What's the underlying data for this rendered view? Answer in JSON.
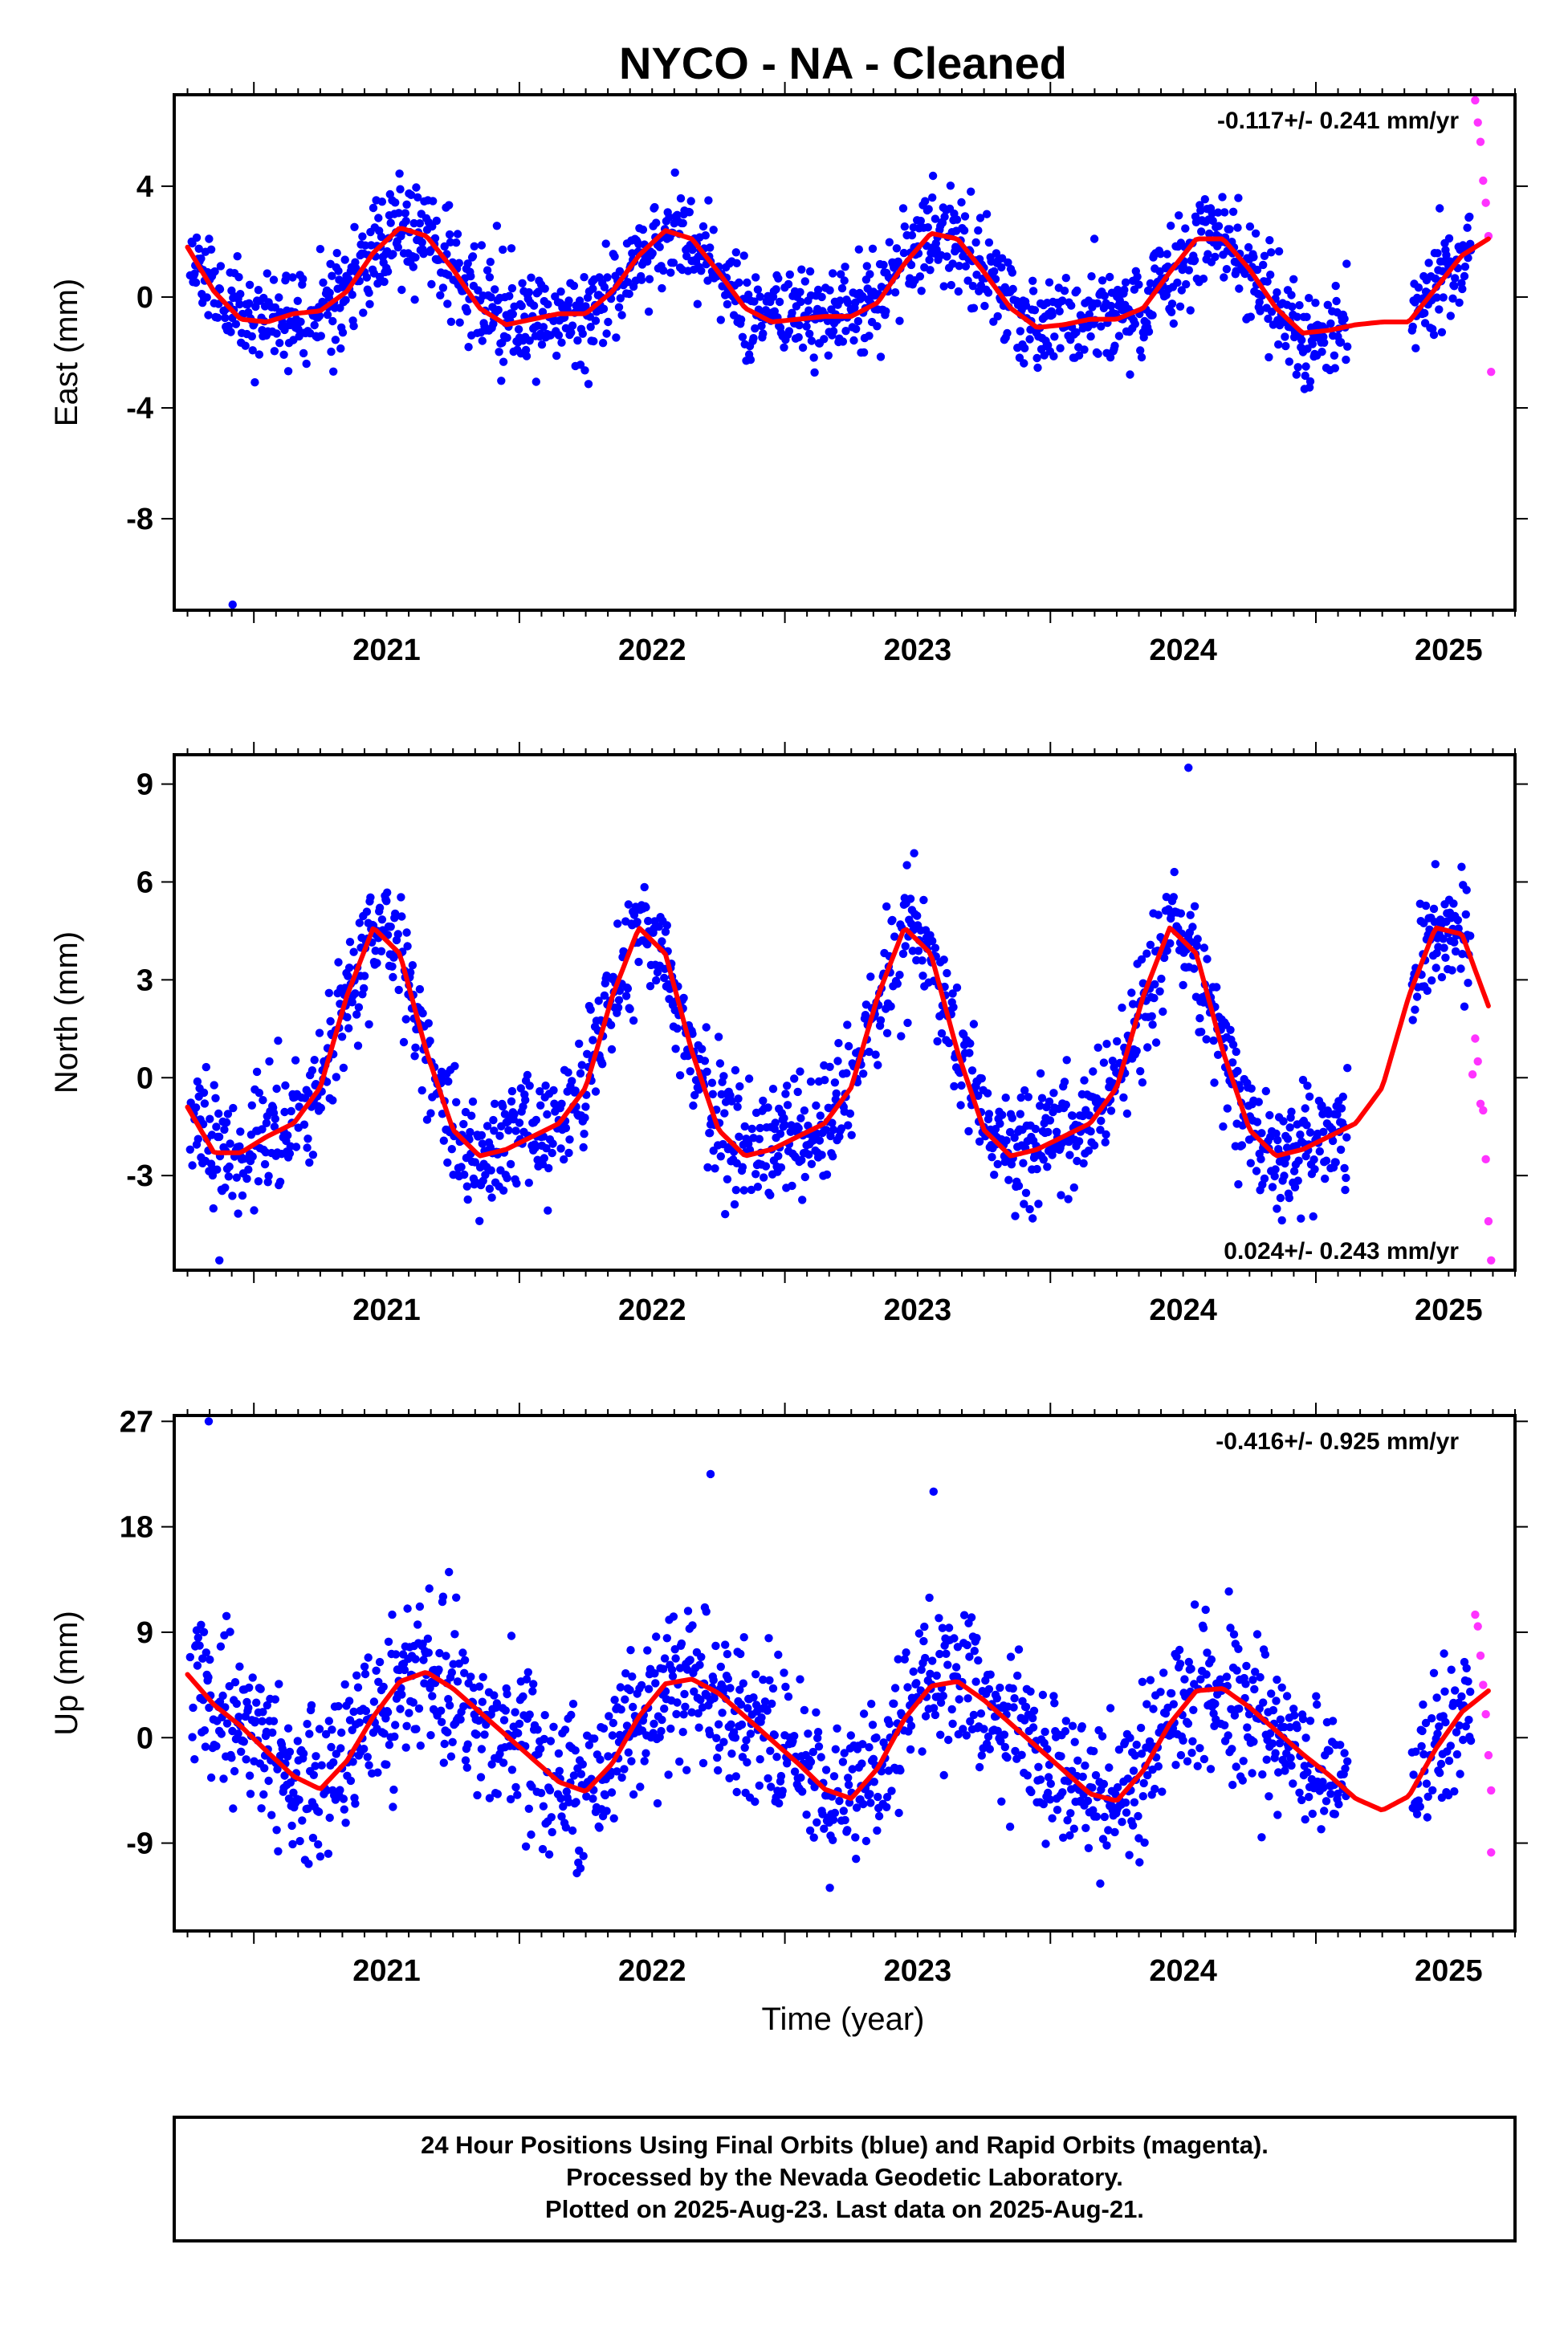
{
  "title": "NYCO  - NA - Cleaned",
  "xlabel": "Time (year)",
  "colors": {
    "final": "#0000ff",
    "rapid": "#ff33ff",
    "model": "#ff0000",
    "frame": "#000000"
  },
  "footer": [
    "24 Hour Positions Using Final Orbits (blue) and Rapid Orbits (magenta).",
    "Processed by the Nevada Geodetic Laboratory.",
    "Plotted on 2025-Aug-23. Last data on 2025-Aug-21."
  ],
  "chart_data": [
    {
      "type": "scatter",
      "ylabel": "East (mm)",
      "rate_text": "-0.117+/- 0.241 mm/yr",
      "rate_position": "top-right",
      "xlim": [
        2020.7,
        2025.75
      ],
      "ylim": [
        -11.3,
        7.3
      ],
      "x_ticks": [
        2021,
        2022,
        2023,
        2024,
        2025
      ],
      "y_ticks": [
        4,
        0,
        -4,
        -8
      ],
      "model": {
        "x": [
          2020.75,
          2020.85,
          2020.95,
          2021.05,
          2021.15,
          2021.25,
          2021.35,
          2021.45,
          2021.55,
          2021.65,
          2021.75,
          2021.85,
          2021.95,
          2022.05,
          2022.15,
          2022.25,
          2022.35,
          2022.45,
          2022.55,
          2022.65,
          2022.75,
          2022.85,
          2022.95,
          2023.05,
          2023.15,
          2023.25,
          2023.35,
          2023.45,
          2023.55,
          2023.65,
          2023.75,
          2023.85,
          2023.95,
          2024.05,
          2024.15,
          2024.25,
          2024.35,
          2024.45,
          2024.55,
          2024.65,
          2024.75,
          2024.85,
          2024.95,
          2025.05,
          2025.15,
          2025.25,
          2025.35,
          2025.45,
          2025.55,
          2025.65
        ],
        "y": [
          1.8,
          0.2,
          -0.8,
          -0.9,
          -0.6,
          -0.5,
          0.2,
          1.6,
          2.5,
          2.2,
          1.0,
          -0.4,
          -1.0,
          -0.8,
          -0.6,
          -0.6,
          0.2,
          1.5,
          2.4,
          2.1,
          0.9,
          -0.4,
          -0.9,
          -0.8,
          -0.7,
          -0.7,
          -0.2,
          1.2,
          2.3,
          2.1,
          0.9,
          -0.4,
          -1.1,
          -1.0,
          -0.8,
          -0.8,
          -0.4,
          0.9,
          2.1,
          2.1,
          1.0,
          -0.4,
          -1.3,
          -1.2,
          -1.0,
          -0.9,
          -0.9,
          0.3,
          1.5,
          2.1
        ]
      },
      "series": [
        {
          "name": "Final Orbits",
          "amp": 1.75,
          "phase": 0.63,
          "offset": -0.05,
          "noise": 0.9,
          "seed": 11
        },
        {
          "name": "Rapid Orbits",
          "x": [
            2025.6,
            2025.61,
            2025.62,
            2025.63,
            2025.64,
            2025.65,
            2025.66
          ],
          "y": [
            7.1,
            6.3,
            5.6,
            4.2,
            3.4,
            2.2,
            -2.7
          ]
        }
      ],
      "outliers": [
        {
          "x": 2020.92,
          "y": -11.1
        }
      ]
    },
    {
      "type": "scatter",
      "ylabel": "North (mm)",
      "rate_text": "0.024+/- 0.243 mm/yr",
      "rate_position": "bottom-right",
      "xlim": [
        2020.7,
        2025.75
      ],
      "ylim": [
        -5.9,
        9.9
      ],
      "x_ticks": [
        2021,
        2022,
        2023,
        2024,
        2025
      ],
      "y_ticks": [
        9,
        6,
        3,
        0,
        -3
      ],
      "model": {
        "x": [
          2020.75,
          2020.85,
          2020.95,
          2021.05,
          2021.15,
          2021.25,
          2021.35,
          2021.45,
          2021.55,
          2021.65,
          2021.75,
          2021.85,
          2021.95,
          2022.05,
          2022.15,
          2022.25,
          2022.35,
          2022.45,
          2022.55,
          2022.65,
          2022.75,
          2022.85,
          2022.95,
          2023.05,
          2023.15,
          2023.25,
          2023.35,
          2023.45,
          2023.55,
          2023.65,
          2023.75,
          2023.85,
          2023.95,
          2024.05,
          2024.15,
          2024.25,
          2024.35,
          2024.45,
          2024.55,
          2024.65,
          2024.75,
          2024.85,
          2024.95,
          2025.05,
          2025.15,
          2025.25,
          2025.35,
          2025.45,
          2025.55,
          2025.65
        ],
        "y": [
          -0.9,
          -2.3,
          -2.3,
          -1.8,
          -1.4,
          -0.3,
          2.5,
          4.6,
          3.8,
          0.8,
          -1.6,
          -2.4,
          -2.2,
          -1.8,
          -1.4,
          -0.3,
          2.5,
          4.6,
          3.8,
          0.8,
          -1.6,
          -2.4,
          -2.2,
          -1.8,
          -1.4,
          -0.3,
          2.5,
          4.6,
          3.8,
          0.8,
          -1.6,
          -2.4,
          -2.2,
          -1.8,
          -1.4,
          -0.3,
          2.5,
          4.6,
          3.8,
          0.8,
          -1.6,
          -2.4,
          -2.2,
          -1.8,
          -1.4,
          -0.3,
          2.5,
          4.6,
          4.4,
          2.2
        ]
      },
      "series": [
        {
          "name": "Final Orbits",
          "amp": 3.5,
          "phase": 0.5,
          "offset": 1.1,
          "noise": 0.9,
          "seed": 23
        },
        {
          "name": "Rapid Orbits",
          "x": [
            2025.59,
            2025.6,
            2025.61,
            2025.62,
            2025.63,
            2025.64,
            2025.65,
            2025.66
          ],
          "y": [
            0.1,
            1.2,
            0.5,
            -0.8,
            -1.0,
            -2.5,
            -4.4,
            -5.6
          ]
        }
      ],
      "outliers": [
        {
          "x": 2020.87,
          "y": -5.6
        },
        {
          "x": 2024.52,
          "y": 9.5
        }
      ]
    },
    {
      "type": "scatter",
      "ylabel": "Up (mm)",
      "rate_text": "-0.416+/- 0.925 mm/yr",
      "rate_position": "top-right",
      "xlim": [
        2020.7,
        2025.75
      ],
      "ylim": [
        -16.5,
        27.5
      ],
      "x_ticks": [
        2021,
        2022,
        2023,
        2024,
        2025
      ],
      "y_ticks": [
        27,
        18,
        9,
        0,
        -9
      ],
      "model": {
        "x": [
          2020.75,
          2020.85,
          2020.95,
          2021.05,
          2021.15,
          2021.25,
          2021.35,
          2021.45,
          2021.55,
          2021.65,
          2021.75,
          2021.85,
          2021.95,
          2022.05,
          2022.15,
          2022.25,
          2022.35,
          2022.45,
          2022.55,
          2022.65,
          2022.75,
          2022.85,
          2022.95,
          2023.05,
          2023.15,
          2023.25,
          2023.35,
          2023.45,
          2023.55,
          2023.65,
          2023.75,
          2023.85,
          2023.95,
          2024.05,
          2024.15,
          2024.25,
          2024.35,
          2024.45,
          2024.55,
          2024.65,
          2024.75,
          2024.85,
          2024.95,
          2025.05,
          2025.15,
          2025.25,
          2025.35,
          2025.45,
          2025.55,
          2025.65
        ],
        "y": [
          5.4,
          2.8,
          1.0,
          -1.2,
          -3.3,
          -4.4,
          -2.0,
          1.8,
          4.8,
          5.6,
          4.2,
          2.2,
          0.2,
          -1.8,
          -3.8,
          -4.6,
          -2.2,
          1.8,
          4.6,
          5.0,
          3.8,
          1.8,
          -0.2,
          -2.2,
          -4.4,
          -5.2,
          -2.6,
          1.6,
          4.4,
          4.8,
          3.2,
          1.2,
          -0.8,
          -2.8,
          -4.8,
          -5.4,
          -2.8,
          1.2,
          4.0,
          4.2,
          2.6,
          0.6,
          -1.4,
          -3.2,
          -5.2,
          -6.2,
          -5.0,
          -1.0,
          2.2,
          4.0
        ]
      },
      "series": [
        {
          "name": "Final Orbits",
          "amp": 4.8,
          "phase": 0.66,
          "offset": 0.0,
          "noise": 3.2,
          "seed": 37
        },
        {
          "name": "Rapid Orbits",
          "x": [
            2025.6,
            2025.61,
            2025.62,
            2025.63,
            2025.64,
            2025.65,
            2025.66,
            2025.66
          ],
          "y": [
            10.5,
            9.5,
            7.0,
            4.5,
            2.0,
            -1.5,
            -4.5,
            -9.8
          ]
        }
      ],
      "outliers": [
        {
          "x": 2020.83,
          "y": 27.0
        },
        {
          "x": 2022.72,
          "y": 22.5
        },
        {
          "x": 2023.56,
          "y": 21.0
        }
      ]
    }
  ]
}
